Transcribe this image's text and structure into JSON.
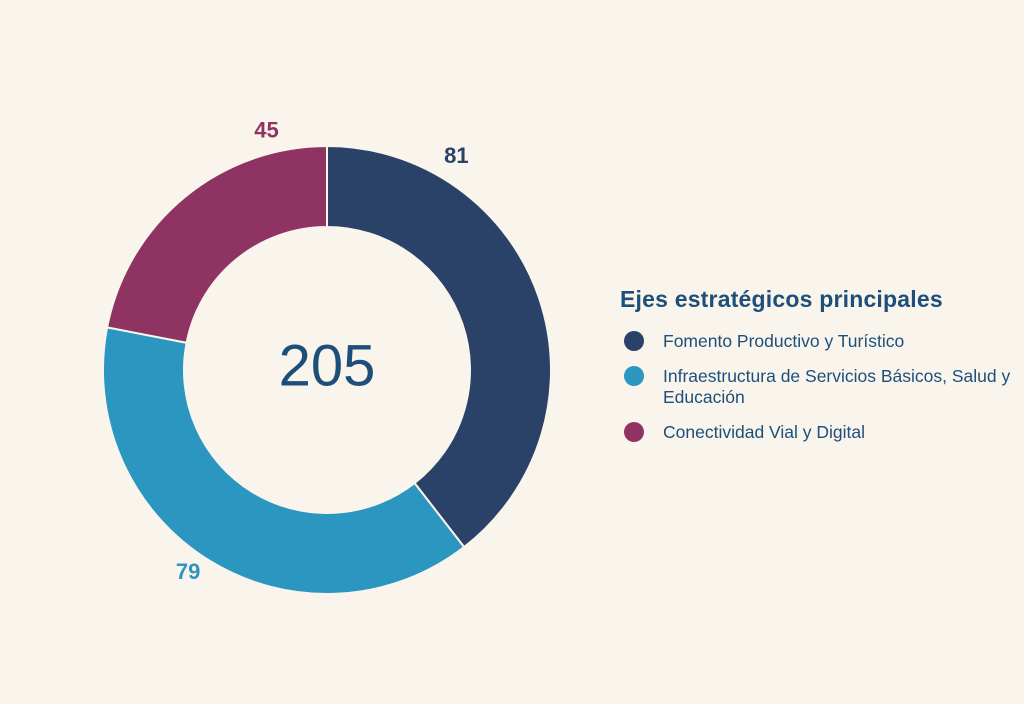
{
  "chart_data": {
    "type": "pie",
    "donut": true,
    "total_label": "205",
    "categories": [
      "Fomento Productivo y Turístico",
      "Infraestructura de Servicios Básicos, Salud y Educación",
      "Conectividad Vial y Digital"
    ],
    "values": [
      81,
      79,
      45
    ],
    "value_labels": [
      "81",
      "79",
      "45"
    ],
    "colors": [
      "#2a4267",
      "#2b96bf",
      "#8f3462"
    ],
    "legend_title": "Ejes estratégicos principales",
    "legend_placement": "right"
  },
  "colors": {
    "background": "#f9f5ec",
    "center_text": "#1d4f7a",
    "legend_text": "#1d4f7a"
  }
}
